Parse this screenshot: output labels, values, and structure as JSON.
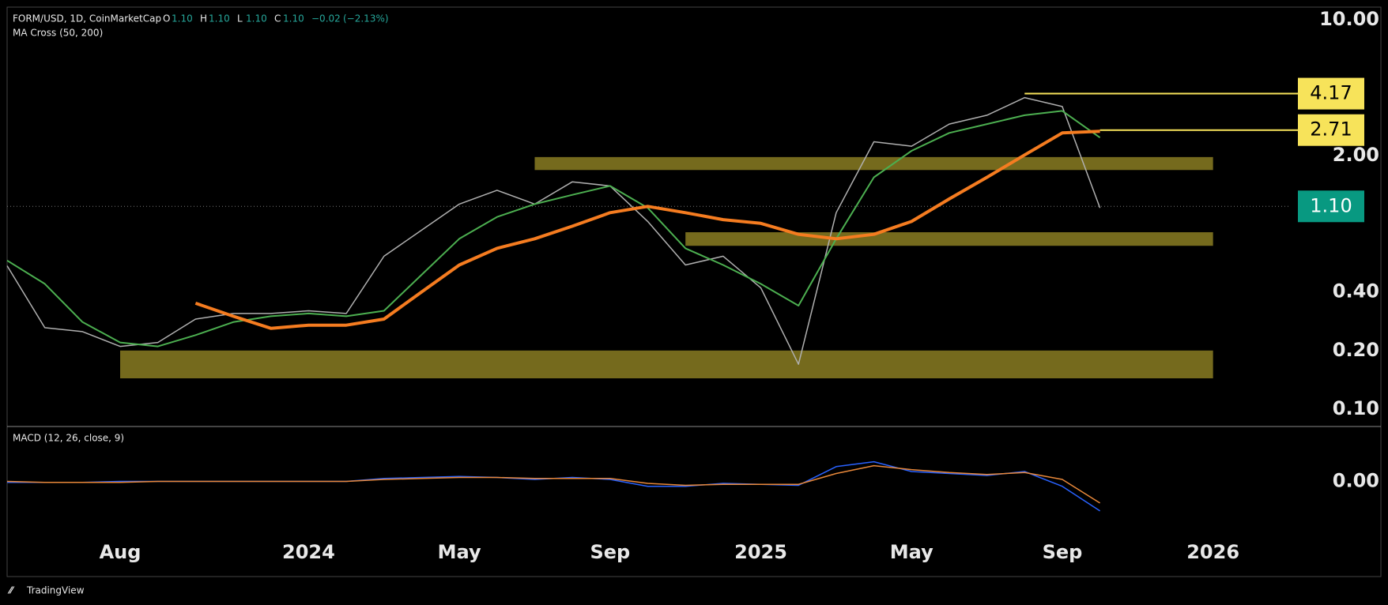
{
  "chart_data": [
    {
      "type": "line",
      "title": "FORM/USD, 1D, CoinMarketCap",
      "ohlc": [
        {
          "name": "O",
          "value": 1.1,
          "label": "1.10"
        },
        {
          "name": "H",
          "value": 1.1,
          "label": "1.10"
        },
        {
          "name": "L",
          "value": 1.1,
          "label": "1.10"
        },
        {
          "name": "C",
          "value": 1.1,
          "label": "1.10"
        }
      ],
      "change": {
        "value": -0.02,
        "label": "−0.02"
      },
      "change_pct": {
        "value": -2.13,
        "label": "(−2.13%)"
      },
      "indicator": "MA Cross (50, 200)",
      "log_scale": true,
      "ylim": [
        0.083,
        11.6
      ],
      "yticks": [
        {
          "value": 10,
          "label": "10.00"
        },
        {
          "value": 2,
          "label": "2.00"
        },
        {
          "value": 0.4,
          "label": "0.40"
        },
        {
          "value": 0.2,
          "label": "0.20"
        },
        {
          "value": 0.1,
          "label": "0.10"
        }
      ],
      "xlim": [
        "2023-05",
        "2026-03"
      ],
      "xticks": [
        {
          "value": "2023-08",
          "label": "Aug"
        },
        {
          "value": "2024-01",
          "label": "2024"
        },
        {
          "value": "2024-05",
          "label": "May"
        },
        {
          "value": "2024-09",
          "label": "Sep"
        },
        {
          "value": "2025-01",
          "label": "2025"
        },
        {
          "value": "2025-05",
          "label": "May"
        },
        {
          "value": "2025-09",
          "label": "Sep"
        },
        {
          "value": "2026-01",
          "label": "2026"
        }
      ],
      "x": [
        "2023-05",
        "2023-06",
        "2023-07",
        "2023-08",
        "2023-09",
        "2023-10",
        "2023-11",
        "2023-12",
        "2024-01",
        "2024-02",
        "2024-03",
        "2024-04",
        "2024-05",
        "2024-06",
        "2024-07",
        "2024-08",
        "2024-09",
        "2024-10",
        "2024-11",
        "2024-12",
        "2025-01",
        "2025-02",
        "2025-03",
        "2025-04",
        "2025-05",
        "2025-06",
        "2025-07",
        "2025-08",
        "2025-09",
        "2025-10"
      ],
      "series": [
        {
          "color": "#b0b0b0",
          "width": 1.5,
          "values": [
            0.545,
            0.262,
            0.25,
            0.21,
            0.22,
            0.29,
            0.31,
            0.31,
            0.32,
            0.31,
            0.61,
            0.83,
            1.13,
            1.33,
            1.13,
            1.47,
            1.4,
            0.92,
            0.55,
            0.61,
            0.42,
            0.17,
            1.02,
            2.36,
            2.24,
            2.91,
            3.23,
            3.98,
            3.58,
            1.08
          ]
        },
        {
          "color": "#4caf50",
          "width": 2,
          "values": [
            0.58,
            0.44,
            0.28,
            0.22,
            0.21,
            0.24,
            0.28,
            0.3,
            0.31,
            0.3,
            0.32,
            0.49,
            0.75,
            0.97,
            1.13,
            1.26,
            1.4,
            1.08,
            0.67,
            0.55,
            0.44,
            0.34,
            0.75,
            1.55,
            2.12,
            2.62,
            2.91,
            3.23,
            3.4,
            2.48
          ]
        },
        {
          "color": "#f57c20",
          "width": 4,
          "values": [
            null,
            null,
            null,
            null,
            null,
            0.35,
            0.3,
            0.26,
            0.27,
            0.27,
            0.29,
            0.4,
            0.55,
            0.67,
            0.75,
            0.87,
            1.02,
            1.1,
            1.02,
            0.94,
            0.9,
            0.79,
            0.75,
            0.79,
            0.92,
            1.2,
            1.55,
            2.02,
            2.62,
            2.67
          ]
        }
      ],
      "zones": [
        {
          "from": "2024-07",
          "to": "2026-01",
          "low": 1.69,
          "high": 1.97,
          "color": "#8a7d22"
        },
        {
          "from": "2024-11",
          "to": "2026-01",
          "low": 0.69,
          "high": 0.81,
          "color": "#8a7d22"
        },
        {
          "from": "2023-08",
          "to": "2026-01",
          "low": 0.144,
          "high": 0.2,
          "color": "#8a7d22"
        }
      ],
      "levels": [
        {
          "from": "2025-08",
          "value": 4.17,
          "label": "4.17",
          "color": "#f7e35a"
        },
        {
          "from": "2025-10",
          "value": 2.71,
          "label": "2.71",
          "color": "#f7e35a"
        }
      ],
      "last_price": {
        "value": 1.1,
        "label": "1.10",
        "color": "#089981"
      }
    },
    {
      "type": "line",
      "indicator": "MACD (12, 26, close, 9)",
      "ylim": [
        -0.55,
        0.55
      ],
      "yticks": [
        {
          "value": 0,
          "label": "0.00"
        }
      ],
      "x": [
        "2023-05",
        "2023-06",
        "2023-07",
        "2023-08",
        "2023-09",
        "2023-10",
        "2023-11",
        "2023-12",
        "2024-01",
        "2024-02",
        "2024-03",
        "2024-04",
        "2024-05",
        "2024-06",
        "2024-07",
        "2024-08",
        "2024-09",
        "2024-10",
        "2024-11",
        "2024-12",
        "2025-01",
        "2025-02",
        "2025-03",
        "2025-04",
        "2025-05",
        "2025-06",
        "2025-07",
        "2025-08",
        "2025-09",
        "2025-10"
      ],
      "series": [
        {
          "color": "#2962ff",
          "width": 1.5,
          "values": [
            -0.01,
            -0.01,
            -0.01,
            0,
            0,
            0,
            0,
            0,
            0,
            0,
            0.03,
            0.04,
            0.05,
            0.04,
            0.02,
            0.04,
            0.02,
            -0.05,
            -0.05,
            -0.02,
            -0.03,
            -0.04,
            0.15,
            0.2,
            0.1,
            0.08,
            0.06,
            0.1,
            -0.05,
            -0.3
          ]
        },
        {
          "color": "#e8883a",
          "width": 1.5,
          "values": [
            0,
            -0.01,
            -0.01,
            -0.01,
            0,
            0,
            0,
            0,
            0,
            0,
            0.02,
            0.03,
            0.04,
            0.04,
            0.03,
            0.03,
            0.03,
            -0.02,
            -0.04,
            -0.03,
            -0.03,
            -0.03,
            0.08,
            0.16,
            0.12,
            0.09,
            0.07,
            0.09,
            0.02,
            -0.22
          ]
        }
      ]
    }
  ],
  "footer": "TradingView"
}
